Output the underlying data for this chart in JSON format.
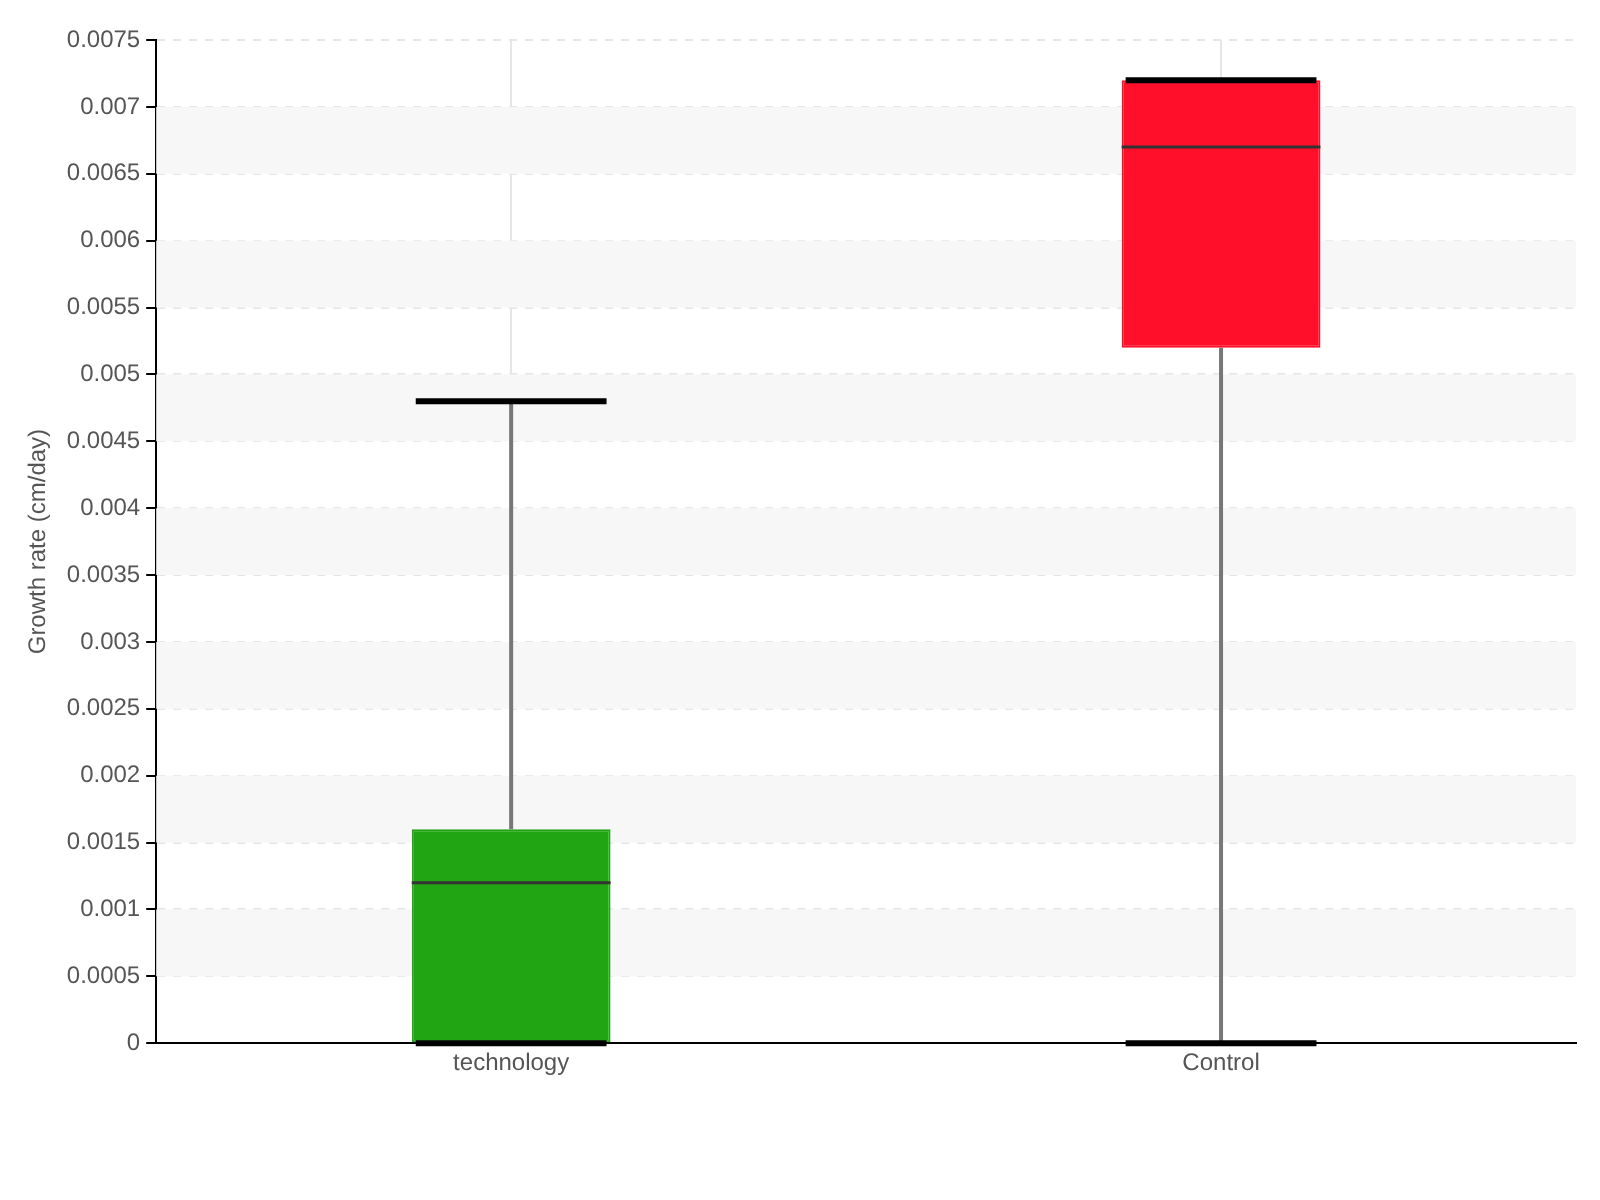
{
  "chart_data": {
    "type": "box",
    "ylabel": "Growth rate (cm/day)",
    "categories": [
      "technology",
      "Control"
    ],
    "boxes": [
      {
        "low": 0,
        "q1": 0,
        "median": 0.0012,
        "q3": 0.0016,
        "high": 0.0048
      },
      {
        "low": 0,
        "q1": 0.0052,
        "median": 0.0067,
        "q3": 0.0072,
        "high": 0.0072
      }
    ],
    "colors": [
      "#22a512",
      "#ff0f2a"
    ],
    "ylim": [
      0,
      0.0075
    ],
    "yticks": [
      0,
      0.0005,
      0.001,
      0.0015,
      0.002,
      0.0025,
      0.003,
      0.0035,
      0.004,
      0.0045,
      0.005,
      0.0055,
      0.006,
      0.0065,
      0.007,
      0.0075
    ],
    "grid": true
  }
}
